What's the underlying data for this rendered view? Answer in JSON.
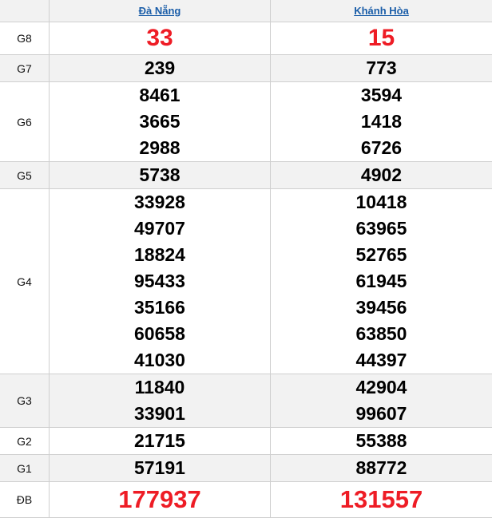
{
  "provinces": [
    "Đà Nẵng",
    "Khánh Hòa"
  ],
  "colors": {
    "special": "#ee1c25",
    "link": "#1a5da8",
    "stripe": "#f2f2f2"
  },
  "prizes": [
    {
      "label": "G8",
      "values": [
        [
          "33"
        ],
        [
          "15"
        ]
      ]
    },
    {
      "label": "G7",
      "values": [
        [
          "239"
        ],
        [
          "773"
        ]
      ]
    },
    {
      "label": "G6",
      "values": [
        [
          "8461",
          "3665",
          "2988"
        ],
        [
          "3594",
          "1418",
          "6726"
        ]
      ]
    },
    {
      "label": "G5",
      "values": [
        [
          "5738"
        ],
        [
          "4902"
        ]
      ]
    },
    {
      "label": "G4",
      "values": [
        [
          "33928",
          "49707",
          "18824",
          "95433",
          "35166",
          "60658",
          "41030"
        ],
        [
          "10418",
          "63965",
          "52765",
          "61945",
          "39456",
          "63850",
          "44397"
        ]
      ]
    },
    {
      "label": "G3",
      "values": [
        [
          "11840",
          "33901"
        ],
        [
          "42904",
          "99607"
        ]
      ]
    },
    {
      "label": "G2",
      "values": [
        [
          "21715"
        ],
        [
          "55388"
        ]
      ]
    },
    {
      "label": "G1",
      "values": [
        [
          "57191"
        ],
        [
          "88772"
        ]
      ]
    },
    {
      "label": "ĐB",
      "values": [
        [
          "177937"
        ],
        [
          "131557"
        ]
      ]
    }
  ]
}
